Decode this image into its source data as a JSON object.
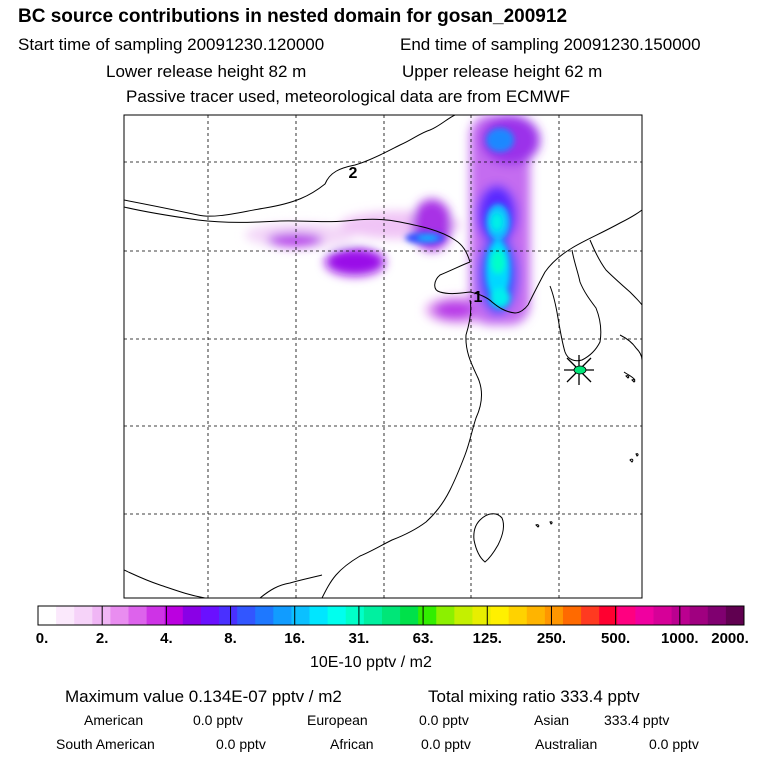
{
  "header": {
    "title": "BC  source contributions in nested domain for gosan_200912",
    "start_sampling": "Start time of sampling 20091230.120000",
    "end_sampling": "End time of sampling 20091230.150000",
    "lower_release": "Lower release height   82 m",
    "upper_release": "Upper release height   62 m",
    "tracer_info": "Passive tracer used, meteorological data are from ECMWF"
  },
  "map": {
    "labels": {
      "release_1": "1",
      "release_2": "2"
    },
    "receptor_marker": "gosan-receptor-star"
  },
  "colorbar": {
    "tick_labels": [
      "0.",
      "2.",
      "4.",
      "8.",
      "16.",
      "31.",
      "63.",
      "125.",
      "250.",
      "500.",
      "1000.",
      "2000."
    ],
    "units": "10E-10 pptv / m2",
    "colors": [
      "#ffffff",
      "#fbe9fc",
      "#f6d3f9",
      "#f0b6f5",
      "#e98df0",
      "#dd63ec",
      "#ce33e6",
      "#bb00e0",
      "#8a00e6",
      "#6a10ff",
      "#4a30ff",
      "#3256ff",
      "#1e78ff",
      "#119cff",
      "#0bc0ff",
      "#00e6ff",
      "#00ffee",
      "#00ffc8",
      "#00f0a0",
      "#00e678",
      "#00e14a",
      "#32ee00",
      "#8cf000",
      "#c4f000",
      "#e8ee00",
      "#fff000",
      "#ffd200",
      "#ffb400",
      "#ff9600",
      "#ff6a00",
      "#ff3a20",
      "#ff0030",
      "#ff0080",
      "#f000a0",
      "#d60098",
      "#bb0090",
      "#a00080",
      "#800070",
      "#600050"
    ]
  },
  "summary": {
    "maximum_value": "Maximum value  0.134E-07 pptv / m2",
    "total_mixing_ratio": "Total mixing ratio      333.4 pptv"
  },
  "regions": [
    {
      "name": "American",
      "value": "0.0 pptv"
    },
    {
      "name": "European",
      "value": "0.0 pptv"
    },
    {
      "name": "Asian",
      "value": "333.4 pptv"
    },
    {
      "name": "South American",
      "value": "0.0 pptv"
    },
    {
      "name": "African",
      "value": "0.0 pptv"
    },
    {
      "name": "Australian",
      "value": "0.0 pptv"
    }
  ]
}
